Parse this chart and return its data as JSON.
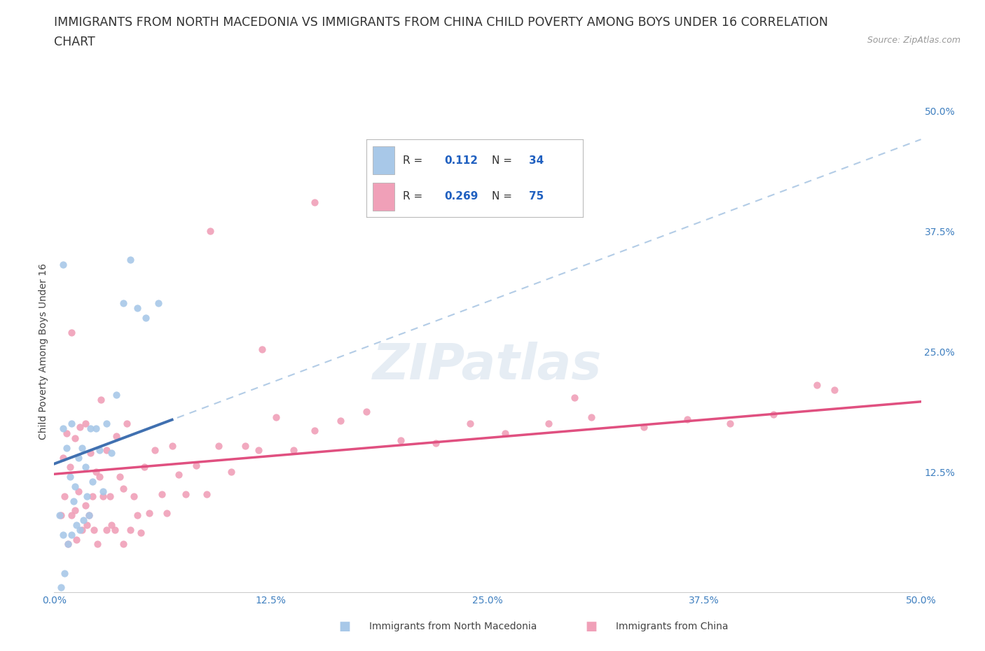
{
  "title_line1": "IMMIGRANTS FROM NORTH MACEDONIA VS IMMIGRANTS FROM CHINA CHILD POVERTY AMONG BOYS UNDER 16 CORRELATION",
  "title_line2": "CHART",
  "source_text": "Source: ZipAtlas.com",
  "ylabel": "Child Poverty Among Boys Under 16",
  "xlim": [
    0.0,
    0.5
  ],
  "ylim": [
    0.0,
    0.5
  ],
  "xtick_labels": [
    "0.0%",
    "12.5%",
    "25.0%",
    "37.5%",
    "50.0%"
  ],
  "xtick_vals": [
    0.0,
    0.125,
    0.25,
    0.375,
    0.5
  ],
  "ytick_labels": [
    "12.5%",
    "25.0%",
    "37.5%",
    "50.0%"
  ],
  "ytick_vals": [
    0.125,
    0.25,
    0.375,
    0.5
  ],
  "color_blue": "#a8c8e8",
  "color_pink": "#f0a0b8",
  "line_blue_dashed": "#a0c0e0",
  "line_blue_solid": "#4070b0",
  "line_pink": "#e05080",
  "R_blue": 0.112,
  "N_blue": 34,
  "R_pink": 0.269,
  "N_pink": 75,
  "watermark": "ZIPatlas",
  "background_color": "#ffffff",
  "grid_color": "#d8e0ec",
  "title_fontsize": 12.5,
  "tick_fontsize": 10,
  "tick_color": "#4080c0",
  "blue_x": [
    0.003,
    0.004,
    0.005,
    0.005,
    0.006,
    0.007,
    0.008,
    0.009,
    0.01,
    0.01,
    0.011,
    0.012,
    0.013,
    0.014,
    0.015,
    0.016,
    0.017,
    0.018,
    0.019,
    0.02,
    0.021,
    0.022,
    0.024,
    0.026,
    0.028,
    0.03,
    0.033,
    0.036,
    0.04,
    0.044,
    0.048,
    0.053,
    0.06,
    0.005
  ],
  "blue_y": [
    0.08,
    0.005,
    0.17,
    0.06,
    0.02,
    0.15,
    0.05,
    0.12,
    0.06,
    0.175,
    0.095,
    0.11,
    0.07,
    0.14,
    0.065,
    0.15,
    0.075,
    0.13,
    0.1,
    0.08,
    0.17,
    0.115,
    0.17,
    0.148,
    0.105,
    0.175,
    0.145,
    0.205,
    0.3,
    0.345,
    0.295,
    0.285,
    0.3,
    0.34
  ],
  "pink_x": [
    0.004,
    0.005,
    0.006,
    0.007,
    0.008,
    0.009,
    0.01,
    0.01,
    0.012,
    0.012,
    0.013,
    0.014,
    0.015,
    0.016,
    0.018,
    0.018,
    0.019,
    0.02,
    0.021,
    0.022,
    0.023,
    0.024,
    0.025,
    0.026,
    0.027,
    0.028,
    0.03,
    0.03,
    0.032,
    0.033,
    0.035,
    0.036,
    0.038,
    0.04,
    0.04,
    0.042,
    0.044,
    0.046,
    0.048,
    0.05,
    0.052,
    0.055,
    0.058,
    0.062,
    0.065,
    0.068,
    0.072,
    0.076,
    0.082,
    0.088,
    0.095,
    0.102,
    0.11,
    0.118,
    0.128,
    0.138,
    0.15,
    0.165,
    0.18,
    0.2,
    0.22,
    0.24,
    0.26,
    0.285,
    0.31,
    0.34,
    0.365,
    0.39,
    0.415,
    0.44,
    0.09,
    0.12,
    0.15,
    0.3,
    0.45
  ],
  "pink_y": [
    0.08,
    0.14,
    0.1,
    0.165,
    0.05,
    0.13,
    0.08,
    0.27,
    0.085,
    0.16,
    0.055,
    0.105,
    0.172,
    0.065,
    0.09,
    0.175,
    0.07,
    0.08,
    0.145,
    0.1,
    0.065,
    0.125,
    0.05,
    0.12,
    0.2,
    0.1,
    0.065,
    0.148,
    0.1,
    0.07,
    0.065,
    0.162,
    0.12,
    0.05,
    0.108,
    0.175,
    0.065,
    0.1,
    0.08,
    0.062,
    0.13,
    0.082,
    0.148,
    0.102,
    0.082,
    0.152,
    0.122,
    0.102,
    0.132,
    0.102,
    0.152,
    0.125,
    0.152,
    0.148,
    0.182,
    0.148,
    0.168,
    0.178,
    0.188,
    0.158,
    0.155,
    0.175,
    0.165,
    0.175,
    0.182,
    0.172,
    0.18,
    0.175,
    0.185,
    0.215,
    0.375,
    0.252,
    0.405,
    0.202,
    0.21
  ],
  "legend_label_color": "#333333",
  "legend_value_color": "#2060c0"
}
